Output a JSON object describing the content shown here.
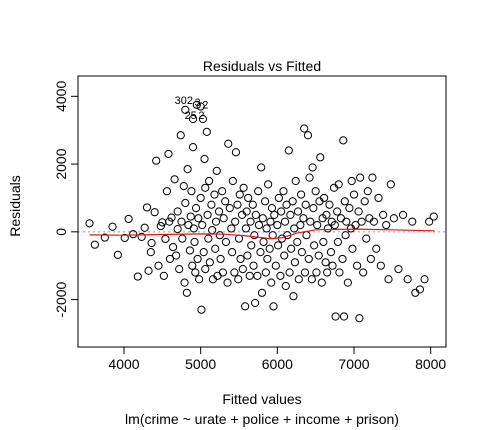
{
  "chart_data": {
    "type": "scatter",
    "title": "Residuals vs Fitted",
    "xlabel": "Fitted values",
    "ylabel": "Residuals",
    "subtitle": "lm(crime ~ urate + police + income + prison)",
    "xlim": [
      3400,
      8200
    ],
    "ylim": [
      -3400,
      4600
    ],
    "x_ticks": [
      4000,
      5000,
      6000,
      7000,
      8000
    ],
    "y_ticks": [
      -2000,
      0,
      2000,
      4000
    ],
    "reference_line_y": 0,
    "point_labels": [
      {
        "text": "302",
        "x": 4780,
        "y": 3780
      },
      {
        "text": "3",
        "x": 4960,
        "y": 3720
      },
      {
        "text": "2",
        "x": 5060,
        "y": 3640
      },
      {
        "text": "25",
        "x": 4870,
        "y": 3330
      },
      {
        "text": "2",
        "x": 5010,
        "y": 3330
      }
    ],
    "smooth_line": [
      [
        3550,
        -90
      ],
      [
        4000,
        -100
      ],
      [
        4500,
        -80
      ],
      [
        5000,
        -60
      ],
      [
        5300,
        -70
      ],
      [
        5600,
        -120
      ],
      [
        5900,
        -200
      ],
      [
        6050,
        -180
      ],
      [
        6250,
        -40
      ],
      [
        6500,
        60
      ],
      [
        7000,
        80
      ],
      [
        7500,
        60
      ],
      [
        8050,
        30
      ]
    ],
    "points": [
      [
        3550,
        250
      ],
      [
        3620,
        -380
      ],
      [
        3750,
        -170
      ],
      [
        3850,
        150
      ],
      [
        3920,
        -680
      ],
      [
        4010,
        -180
      ],
      [
        4060,
        380
      ],
      [
        4120,
        -70
      ],
      [
        4180,
        -1320
      ],
      [
        4230,
        -150
      ],
      [
        4270,
        120
      ],
      [
        4300,
        720
      ],
      [
        4320,
        -1150
      ],
      [
        4350,
        -600
      ],
      [
        4360,
        -330
      ],
      [
        4400,
        580
      ],
      [
        4420,
        2100
      ],
      [
        4450,
        -1000
      ],
      [
        4480,
        170
      ],
      [
        4500,
        280
      ],
      [
        4520,
        -1300
      ],
      [
        4540,
        -210
      ],
      [
        4560,
        1200
      ],
      [
        4580,
        2300
      ],
      [
        4590,
        300
      ],
      [
        4600,
        -800
      ],
      [
        4620,
        420
      ],
      [
        4640,
        -450
      ],
      [
        4660,
        1550
      ],
      [
        4680,
        -700
      ],
      [
        4700,
        80
      ],
      [
        4700,
        600
      ],
      [
        4720,
        -1100
      ],
      [
        4740,
        2850
      ],
      [
        4750,
        300
      ],
      [
        4760,
        -200
      ],
      [
        4780,
        1350
      ],
      [
        4790,
        -1500
      ],
      [
        4800,
        3600
      ],
      [
        4800,
        850
      ],
      [
        4820,
        -1800
      ],
      [
        4830,
        1850
      ],
      [
        4840,
        200
      ],
      [
        4860,
        -550
      ],
      [
        4870,
        450
      ],
      [
        4880,
        1200
      ],
      [
        4890,
        -1000
      ],
      [
        4900,
        3330
      ],
      [
        4900,
        2500
      ],
      [
        4910,
        100
      ],
      [
        4920,
        -300
      ],
      [
        4930,
        -1200
      ],
      [
        4940,
        700
      ],
      [
        4950,
        3750
      ],
      [
        4960,
        -800
      ],
      [
        4970,
        400
      ],
      [
        4980,
        -1400
      ],
      [
        5000,
        3700
      ],
      [
        5000,
        1000
      ],
      [
        5010,
        -2300
      ],
      [
        5020,
        200
      ],
      [
        5030,
        3330
      ],
      [
        5040,
        -600
      ],
      [
        5050,
        2150
      ],
      [
        5060,
        1300
      ],
      [
        5060,
        -1100
      ],
      [
        5080,
        2950
      ],
      [
        5090,
        500
      ],
      [
        5100,
        -200
      ],
      [
        5110,
        1500
      ],
      [
        5120,
        -900
      ],
      [
        5140,
        800
      ],
      [
        5150,
        50
      ],
      [
        5160,
        -1400
      ],
      [
        5180,
        1100
      ],
      [
        5190,
        -500
      ],
      [
        5200,
        300
      ],
      [
        5210,
        1800
      ],
      [
        5220,
        -1300
      ],
      [
        5240,
        600
      ],
      [
        5250,
        -100
      ],
      [
        5260,
        -800
      ],
      [
        5280,
        1200
      ],
      [
        5290,
        -1200
      ],
      [
        5300,
        400
      ],
      [
        5320,
        900
      ],
      [
        5330,
        -300
      ],
      [
        5350,
        -1500
      ],
      [
        5360,
        2600
      ],
      [
        5380,
        700
      ],
      [
        5400,
        100
      ],
      [
        5410,
        -600
      ],
      [
        5420,
        1500
      ],
      [
        5440,
        -1200
      ],
      [
        5450,
        300
      ],
      [
        5460,
        2350
      ],
      [
        5480,
        800
      ],
      [
        5490,
        -1400
      ],
      [
        5500,
        -200
      ],
      [
        5510,
        1100
      ],
      [
        5520,
        -800
      ],
      [
        5540,
        500
      ],
      [
        5550,
        -1100
      ],
      [
        5560,
        1300
      ],
      [
        5580,
        -2200
      ],
      [
        5590,
        100
      ],
      [
        5600,
        600
      ],
      [
        5610,
        -700
      ],
      [
        5620,
        1000
      ],
      [
        5640,
        -1300
      ],
      [
        5650,
        300
      ],
      [
        5660,
        -400
      ],
      [
        5680,
        800
      ],
      [
        5690,
        -1000
      ],
      [
        5700,
        -100
      ],
      [
        5710,
        -2100
      ],
      [
        5720,
        500
      ],
      [
        5740,
        -1300
      ],
      [
        5750,
        1200
      ],
      [
        5760,
        200
      ],
      [
        5780,
        -600
      ],
      [
        5790,
        1900
      ],
      [
        5800,
        -1800
      ],
      [
        5810,
        400
      ],
      [
        5820,
        -300
      ],
      [
        5840,
        900
      ],
      [
        5850,
        -1200
      ],
      [
        5860,
        100
      ],
      [
        5870,
        -800
      ],
      [
        5880,
        1400
      ],
      [
        5900,
        -500
      ],
      [
        5910,
        300
      ],
      [
        5920,
        -1500
      ],
      [
        5930,
        700
      ],
      [
        5940,
        -100
      ],
      [
        5950,
        -2200
      ],
      [
        5960,
        500
      ],
      [
        5980,
        -1000
      ],
      [
        6000,
        200
      ],
      [
        6010,
        -400
      ],
      [
        6020,
        1000
      ],
      [
        6040,
        -1300
      ],
      [
        6050,
        600
      ],
      [
        6060,
        -200
      ],
      [
        6080,
        1200
      ],
      [
        6090,
        -700
      ],
      [
        6100,
        300
      ],
      [
        6110,
        -1600
      ],
      [
        6120,
        800
      ],
      [
        6130,
        -100
      ],
      [
        6150,
        2400
      ],
      [
        6160,
        -1200
      ],
      [
        6170,
        500
      ],
      [
        6180,
        -500
      ],
      [
        6200,
        900
      ],
      [
        6210,
        -1900
      ],
      [
        6220,
        100
      ],
      [
        6230,
        -900
      ],
      [
        6240,
        1500
      ],
      [
        6260,
        -300
      ],
      [
        6270,
        600
      ],
      [
        6280,
        -1400
      ],
      [
        6300,
        200
      ],
      [
        6310,
        1100
      ],
      [
        6320,
        -600
      ],
      [
        6340,
        400
      ],
      [
        6350,
        3050
      ],
      [
        6360,
        -1200
      ],
      [
        6370,
        800
      ],
      [
        6380,
        -100
      ],
      [
        6400,
        2850
      ],
      [
        6410,
        -800
      ],
      [
        6420,
        1600
      ],
      [
        6430,
        300
      ],
      [
        6450,
        -1400
      ],
      [
        6460,
        1900
      ],
      [
        6470,
        700
      ],
      [
        6480,
        -400
      ],
      [
        6500,
        1200
      ],
      [
        6510,
        -1200
      ],
      [
        6520,
        200
      ],
      [
        6540,
        -700
      ],
      [
        6550,
        900
      ],
      [
        6560,
        2200
      ],
      [
        6580,
        -1500
      ],
      [
        6590,
        400
      ],
      [
        6600,
        -300
      ],
      [
        6610,
        1000
      ],
      [
        6630,
        -900
      ],
      [
        6640,
        500
      ],
      [
        6650,
        -1200
      ],
      [
        6660,
        100
      ],
      [
        6680,
        800
      ],
      [
        6700,
        -600
      ],
      [
        6710,
        300
      ],
      [
        6720,
        -1000
      ],
      [
        6740,
        1300
      ],
      [
        6750,
        200
      ],
      [
        6760,
        -2500
      ],
      [
        6780,
        600
      ],
      [
        6790,
        -300
      ],
      [
        6800,
        1400
      ],
      [
        6810,
        -1200
      ],
      [
        6830,
        400
      ],
      [
        6850,
        -800
      ],
      [
        6860,
        2700
      ],
      [
        6870,
        -2500
      ],
      [
        6880,
        900
      ],
      [
        6890,
        -100
      ],
      [
        6900,
        300
      ],
      [
        6920,
        -1500
      ],
      [
        6940,
        700
      ],
      [
        6960,
        100
      ],
      [
        6970,
        1500
      ],
      [
        6980,
        -500
      ],
      [
        7000,
        1100
      ],
      [
        7020,
        200
      ],
      [
        7040,
        -1000
      ],
      [
        7060,
        600
      ],
      [
        7070,
        -2550
      ],
      [
        7080,
        1600
      ],
      [
        7100,
        300
      ],
      [
        7120,
        -1200
      ],
      [
        7140,
        900
      ],
      [
        7160,
        -200
      ],
      [
        7180,
        1200
      ],
      [
        7200,
        400
      ],
      [
        7220,
        -800
      ],
      [
        7240,
        1600
      ],
      [
        7260,
        300
      ],
      [
        7290,
        -500
      ],
      [
        7320,
        1000
      ],
      [
        7350,
        -1000
      ],
      [
        7380,
        500
      ],
      [
        7420,
        200
      ],
      [
        7450,
        -1400
      ],
      [
        7480,
        1400
      ],
      [
        7520,
        400
      ],
      [
        7580,
        -1100
      ],
      [
        7640,
        500
      ],
      [
        7700,
        -1400
      ],
      [
        7760,
        300
      ],
      [
        7800,
        -1800
      ],
      [
        7860,
        -1700
      ],
      [
        7920,
        -1400
      ],
      [
        7980,
        300
      ],
      [
        8040,
        450
      ]
    ]
  }
}
